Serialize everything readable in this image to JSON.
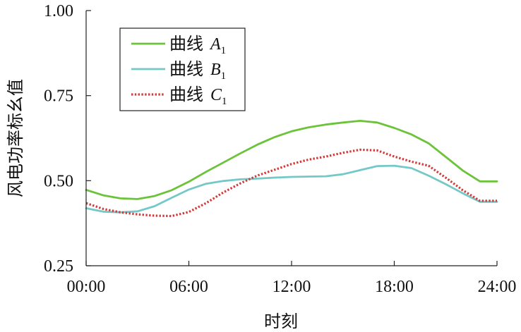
{
  "chart_data": {
    "type": "line",
    "title": "",
    "xlabel": "时刻",
    "ylabel": "风电功率标幺值",
    "xlim": [
      0,
      24
    ],
    "ylim": [
      0.25,
      1.0
    ],
    "xticks": [
      {
        "value": 0,
        "label": "00:00"
      },
      {
        "value": 6,
        "label": "06:00"
      },
      {
        "value": 12,
        "label": "12:00"
      },
      {
        "value": 18,
        "label": "18:00"
      },
      {
        "value": 24,
        "label": "24:00"
      }
    ],
    "yticks": [
      {
        "value": 0.25,
        "label": "0.25"
      },
      {
        "value": 0.5,
        "label": "0.50"
      },
      {
        "value": 0.75,
        "label": "0.75"
      },
      {
        "value": 1.0,
        "label": "1.00"
      }
    ],
    "grid": false,
    "legend_position": "top-left",
    "x": [
      0,
      1,
      2,
      3,
      4,
      5,
      6,
      7,
      8,
      9,
      10,
      11,
      12,
      13,
      14,
      15,
      16,
      17,
      18,
      19,
      20,
      21,
      22,
      23,
      24
    ],
    "series": [
      {
        "name_prefix": "曲线",
        "name_letter": "A",
        "name_sub": "1",
        "color": "#6cc33a",
        "dash": "solid",
        "values": [
          0.473,
          0.457,
          0.448,
          0.446,
          0.455,
          0.472,
          0.497,
          0.526,
          0.553,
          0.58,
          0.606,
          0.628,
          0.645,
          0.657,
          0.665,
          0.671,
          0.676,
          0.671,
          0.655,
          0.636,
          0.61,
          0.57,
          0.53,
          0.498,
          0.498
        ]
      },
      {
        "name_prefix": "曲线",
        "name_letter": "B",
        "name_sub": "1",
        "color": "#74c9c8",
        "dash": "solid",
        "values": [
          0.419,
          0.409,
          0.407,
          0.41,
          0.425,
          0.45,
          0.474,
          0.491,
          0.499,
          0.504,
          0.506,
          0.509,
          0.511,
          0.512,
          0.513,
          0.519,
          0.531,
          0.543,
          0.544,
          0.537,
          0.515,
          0.49,
          0.463,
          0.438,
          0.438
        ]
      },
      {
        "name_prefix": "曲线",
        "name_letter": "C",
        "name_sub": "1",
        "color": "#d33a3a",
        "dash": "dotted",
        "values": [
          0.434,
          0.417,
          0.407,
          0.401,
          0.397,
          0.396,
          0.408,
          0.434,
          0.465,
          0.492,
          0.515,
          0.532,
          0.549,
          0.562,
          0.571,
          0.582,
          0.591,
          0.589,
          0.571,
          0.556,
          0.544,
          0.509,
          0.472,
          0.441,
          0.441
        ]
      }
    ]
  }
}
